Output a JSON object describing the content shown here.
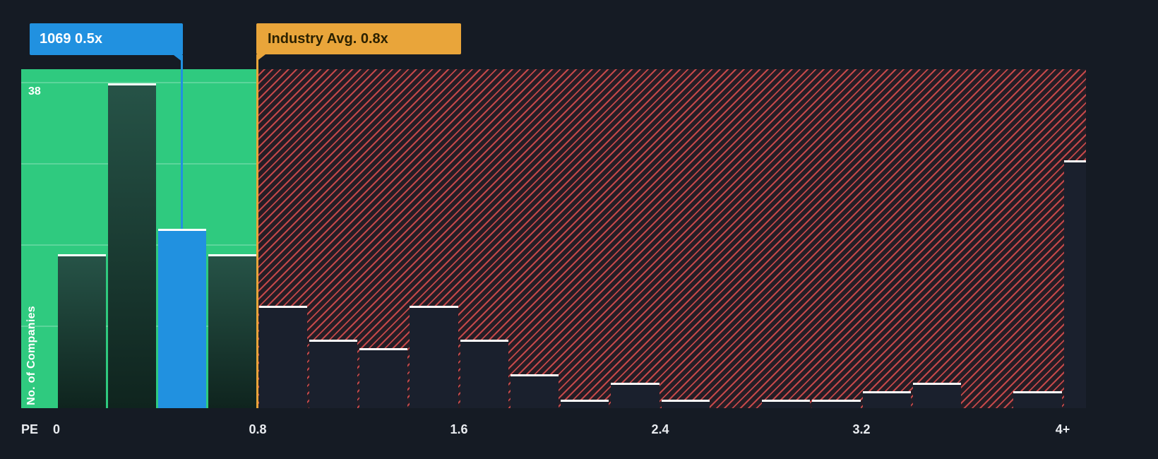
{
  "chart_data": {
    "type": "bar",
    "xlabel": "PE",
    "ylabel": "No. of Companies",
    "ylim": [
      0,
      38
    ],
    "y_top_gridline_label": "38",
    "bin_width": 0.2,
    "x_ticks": [
      {
        "value": 0,
        "label": "0"
      },
      {
        "value": 0.8,
        "label": "0.8"
      },
      {
        "value": 1.6,
        "label": "1.6"
      },
      {
        "value": 2.4,
        "label": "2.4"
      },
      {
        "value": 3.2,
        "label": "3.2"
      },
      {
        "value": 4,
        "label": "4+"
      }
    ],
    "bins": [
      {
        "x0": 0.0,
        "value": 18
      },
      {
        "x0": 0.2,
        "value": 38
      },
      {
        "x0": 0.4,
        "value": 21,
        "highlight": true
      },
      {
        "x0": 0.6,
        "value": 18
      },
      {
        "x0": 0.8,
        "value": 12
      },
      {
        "x0": 1.0,
        "value": 8
      },
      {
        "x0": 1.2,
        "value": 7
      },
      {
        "x0": 1.4,
        "value": 12
      },
      {
        "x0": 1.6,
        "value": 8
      },
      {
        "x0": 1.8,
        "value": 4
      },
      {
        "x0": 2.0,
        "value": 1
      },
      {
        "x0": 2.2,
        "value": 3
      },
      {
        "x0": 2.4,
        "value": 1
      },
      {
        "x0": 2.6,
        "value": 0
      },
      {
        "x0": 2.8,
        "value": 1
      },
      {
        "x0": 3.0,
        "value": 1
      },
      {
        "x0": 3.2,
        "value": 2
      },
      {
        "x0": 3.4,
        "value": 3
      },
      {
        "x0": 3.6,
        "value": 0
      },
      {
        "x0": 3.8,
        "value": 2
      },
      {
        "x0": 4.0,
        "value": 29,
        "overflow": true
      }
    ],
    "highlight": {
      "label": "1069 0.5x",
      "x": 0.5,
      "value": 21
    },
    "industry_avg": {
      "label": "Industry Avg. 0.8x",
      "x": 0.8
    },
    "zones": [
      {
        "from": 0,
        "to": 0.8,
        "style": "green-solid"
      },
      {
        "from": 0.8,
        "to": 4.2,
        "style": "red-hatched"
      }
    ],
    "colors": {
      "background": "#151b24",
      "green_zone": "#2fca7f",
      "highlight_blue": "#2191e0",
      "industry_amber": "#e9a53a",
      "hatch_red": "#e05050",
      "bar_dark": "#1a202d",
      "bar_top_line": "#ffffff",
      "axis_text": "#e9ecf0"
    }
  }
}
